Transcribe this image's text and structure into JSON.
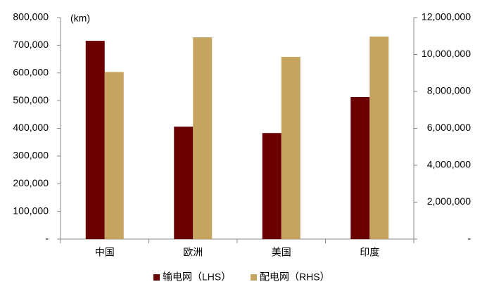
{
  "chart_data": {
    "type": "bar",
    "y_label": "(km)",
    "categories": [
      "中国",
      "欧洲",
      "美国",
      "印度"
    ],
    "series": [
      {
        "name": "输电网（LHS）",
        "color": "#6b0000",
        "values": [
          716000,
          406000,
          383000,
          513000
        ]
      },
      {
        "name": "配电网（RHS）",
        "color": "#c4a45f",
        "axis": "y2",
        "values": [
          9050000,
          10930000,
          9870000,
          10970000
        ]
      }
    ],
    "ylim": [
      0,
      800000
    ],
    "yticks": [
      {
        "value": 0,
        "label": "-"
      },
      {
        "value": 100000,
        "label": "100,000"
      },
      {
        "value": 200000,
        "label": "200,000"
      },
      {
        "value": 300000,
        "label": "300,000"
      },
      {
        "value": 400000,
        "label": "400,000"
      },
      {
        "value": 500000,
        "label": "500,000"
      },
      {
        "value": 600000,
        "label": "600,000"
      },
      {
        "value": 700000,
        "label": "700,000"
      },
      {
        "value": 800000,
        "label": "800,000"
      }
    ],
    "y2lim": [
      0,
      12000000
    ],
    "y2ticks": [
      {
        "value": 0,
        "label": "-"
      },
      {
        "value": 2000000,
        "label": "2,000,000"
      },
      {
        "value": 4000000,
        "label": "4,000,000"
      },
      {
        "value": 6000000,
        "label": "6,000,000"
      },
      {
        "value": 8000000,
        "label": "8,000,000"
      },
      {
        "value": 10000000,
        "label": "10,000,000"
      },
      {
        "value": 12000000,
        "label": "12,000,000"
      }
    ],
    "legend": "bottom"
  }
}
